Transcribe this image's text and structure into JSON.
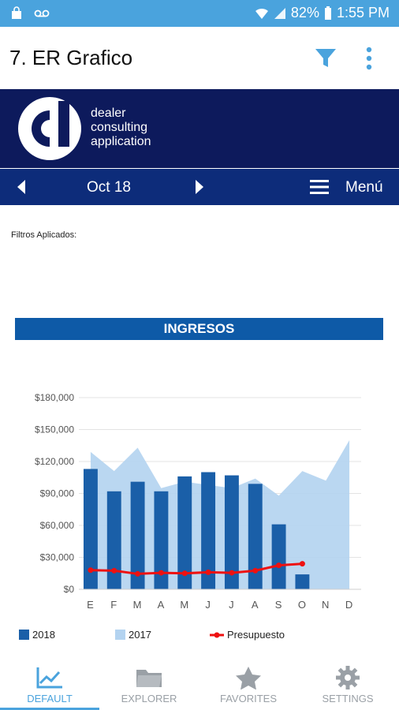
{
  "status_bar": {
    "battery": "82%",
    "time": "1:55 PM"
  },
  "app_bar": {
    "title": "7. ER Grafico"
  },
  "banner": {
    "logo_line1": "dealer",
    "logo_line2": "consulting",
    "logo_line3": "application"
  },
  "period_nav": {
    "date": "Oct 18",
    "menu_label": "Menú"
  },
  "filters": {
    "label": "Filtros Aplicados:"
  },
  "section": {
    "title": "INGRESOS"
  },
  "colors": {
    "bar_2018": "#1a5fa8",
    "area_2017": "#b3d3f0",
    "budget_line": "#ee1111",
    "accent": "#4aa3dd",
    "banner": "#0d1a5c"
  },
  "chart_data": {
    "type": "bar",
    "categories": [
      "E",
      "F",
      "M",
      "A",
      "M",
      "J",
      "J",
      "A",
      "S",
      "O",
      "N",
      "D"
    ],
    "series": [
      {
        "name": "2018",
        "kind": "bar",
        "values": [
          113000,
          92000,
          101000,
          92000,
          106000,
          110000,
          107000,
          99000,
          61000,
          14000,
          null,
          null
        ]
      },
      {
        "name": "2017",
        "kind": "area",
        "values": [
          129000,
          111000,
          133000,
          95000,
          101000,
          98000,
          95000,
          104000,
          88000,
          111000,
          102000,
          140000
        ]
      },
      {
        "name": "Presupuesto",
        "kind": "line",
        "values": [
          18000,
          17500,
          14500,
          15500,
          15000,
          16000,
          15500,
          17500,
          22500,
          24000,
          null,
          null
        ]
      }
    ],
    "yticks": [
      "$0",
      "$30,000",
      "$60,000",
      "$90,000",
      "$120,000",
      "$150,000",
      "$180,000"
    ],
    "ylim": [
      0,
      180000
    ],
    "grid": true,
    "legend_position": "bottom"
  },
  "tabs": [
    {
      "label": "DEFAULT",
      "icon": "chart-line-icon",
      "active": true
    },
    {
      "label": "EXPLORER",
      "icon": "folder-icon",
      "active": false
    },
    {
      "label": "FAVORITES",
      "icon": "star-icon",
      "active": false
    },
    {
      "label": "SETTINGS",
      "icon": "gear-icon",
      "active": false
    }
  ]
}
